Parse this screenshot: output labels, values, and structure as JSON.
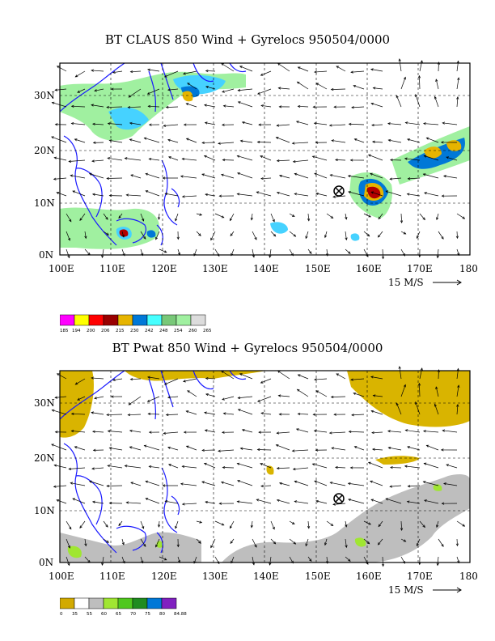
{
  "panel1": {
    "title": "BT CLAUS 850 Wind + Gyrelocs 950504/0000",
    "lat_labels": [
      "30N",
      "20N",
      "10N",
      "0N"
    ],
    "lon_labels": [
      "100E",
      "110E",
      "120E",
      "130E",
      "140E",
      "150E",
      "160E",
      "170E",
      "180"
    ],
    "vector_ref": "15 M/S",
    "colorbar_labels": [
      "185",
      "194",
      "200",
      "206",
      "215",
      "230",
      "242",
      "248",
      "254",
      "260",
      "265"
    ],
    "colorbar_colors": [
      "#ff00ff",
      "#ffff00",
      "#ff0000",
      "#990000",
      "#e6b400",
      "#0078d7",
      "#46ffff",
      "#78c878",
      "#a0f0a0",
      "#dcdcdc"
    ],
    "cloud_colors": {
      "light": "#a0f0a0",
      "mid": "#46d2ff",
      "cold": "#0078d7",
      "colder": "#e6b400",
      "coldest": "#b40000"
    }
  },
  "panel2": {
    "title": "BT Pwat 850 Wind + Gyrelocs 950504/0000",
    "lat_labels": [
      "30N",
      "20N",
      "10N",
      "0N"
    ],
    "lon_labels": [
      "100E",
      "110E",
      "120E",
      "130E",
      "140E",
      "150E",
      "160E",
      "170E",
      "180"
    ],
    "vector_ref": "15 M/S",
    "colorbar_labels": [
      "0",
      "35",
      "55",
      "60",
      "65",
      "70",
      "75",
      "80",
      "84.88"
    ],
    "colorbar_colors": [
      "#d2aa00",
      "#ffffff",
      "#bebebe",
      "#a0e632",
      "#50c81e",
      "#208c20",
      "#0078d7",
      "#8020c0"
    ],
    "pwat_colors": {
      "dry": "#d9b400",
      "moist": "#bebebe",
      "wet": "#a0e632"
    }
  },
  "gyre_location": {
    "lon": 155,
    "lat": 12.3
  },
  "colors": {
    "coast": "#1a1aff",
    "grid": "#000000"
  }
}
